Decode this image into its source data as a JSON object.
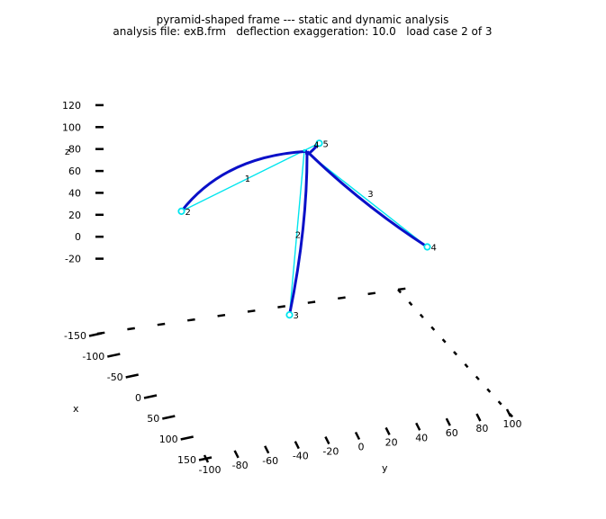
{
  "chart_data": {
    "type": "3d-line",
    "title": "pyramid-shaped frame --- static and dynamic analysis",
    "subtitle": "analysis file: exB.frm   deflection exaggeration: 10.0   load case 2 of 3",
    "xlabel": "x",
    "ylabel": "y",
    "zlabel": "z",
    "x_ticks": [
      "-150",
      "-100",
      "-50",
      "0",
      "50",
      "100",
      "150"
    ],
    "y_ticks": [
      "-100",
      "-80",
      "-60",
      "-40",
      "-20",
      "0",
      "20",
      "40",
      "60",
      "80",
      "100"
    ],
    "z_ticks": [
      "120",
      "100",
      "80",
      "60",
      "40",
      "20",
      "0",
      "-20"
    ],
    "grid": false,
    "colors": {
      "undeformed": "#00e5ee",
      "deformed": "#0a10c8",
      "text": "#000000"
    },
    "nodes": [
      {
        "id": "1",
        "label": "",
        "x": 0,
        "y": 0,
        "z": 66
      },
      {
        "id": "2",
        "label": "2",
        "x": -120,
        "y": -90,
        "z": -10
      },
      {
        "id": "3",
        "label": "3",
        "x": 120,
        "y": -90,
        "z": -10
      },
      {
        "id": "4",
        "label": "4",
        "x": 120,
        "y": 90,
        "z": -10
      },
      {
        "id": "5",
        "label": "5",
        "x": -120,
        "y": 90,
        "z": -10
      }
    ],
    "elements": [
      {
        "label": "1",
        "n1": "1",
        "n2": "2"
      },
      {
        "label": "2",
        "n1": "1",
        "n2": "3"
      },
      {
        "label": "3",
        "n1": "1",
        "n2": "4"
      },
      {
        "label": "4",
        "n1": "1",
        "n2": "5"
      }
    ]
  }
}
